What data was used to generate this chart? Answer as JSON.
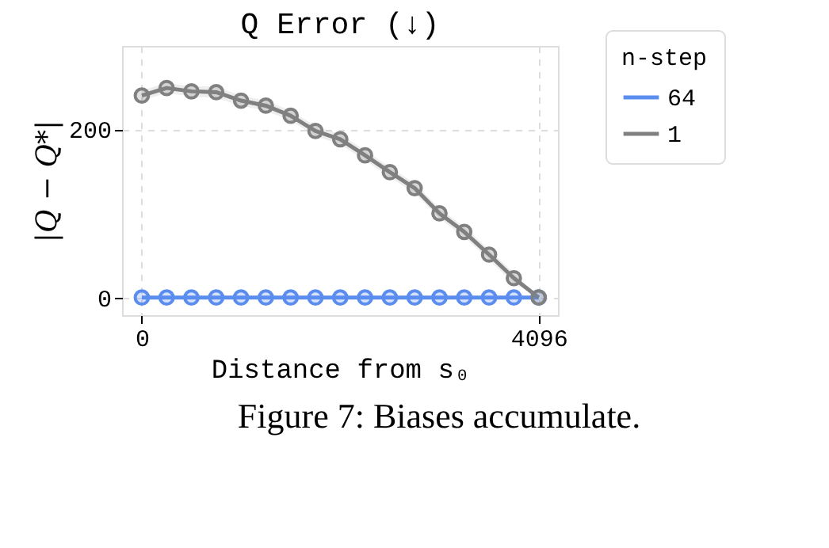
{
  "chart_data": {
    "type": "line",
    "title": "Q Error (↓)",
    "xlabel": "Distance from s₀",
    "ylabel": "|Q − Q*|",
    "legend_title": "n-step",
    "x": [
      0,
      256,
      512,
      768,
      1024,
      1280,
      1536,
      1792,
      2048,
      2304,
      2560,
      2816,
      3072,
      3328,
      3584,
      3840,
      4096
    ],
    "series": [
      {
        "name": "64",
        "color": "#5b8def",
        "values": [
          0,
          0,
          0,
          0,
          0,
          0,
          0,
          0,
          0,
          0,
          0,
          0,
          0,
          0,
          0,
          0,
          0
        ]
      },
      {
        "name": "1",
        "color": "#808080",
        "values": [
          240,
          249,
          245,
          244,
          234,
          228,
          216,
          198,
          188,
          169,
          149,
          130,
          100,
          78,
          51,
          23,
          0
        ],
        "lower": [
          234,
          243,
          239,
          237,
          228,
          222,
          210,
          192,
          182,
          163,
          143,
          124,
          94,
          72,
          45,
          17,
          0
        ],
        "upper": [
          246,
          255,
          251,
          251,
          240,
          234,
          222,
          204,
          194,
          175,
          155,
          136,
          106,
          84,
          57,
          29,
          0
        ]
      }
    ],
    "xlim": [
      -204,
      4295
    ],
    "ylim": [
      -21,
      299
    ],
    "xticks": [
      0,
      4096
    ],
    "yticks": [
      0,
      200
    ],
    "grid": true,
    "legend": "top right",
    "marker": "circle",
    "line_style": "solid",
    "annotations": [
      "Figure 7: Biases accumulate."
    ]
  }
}
